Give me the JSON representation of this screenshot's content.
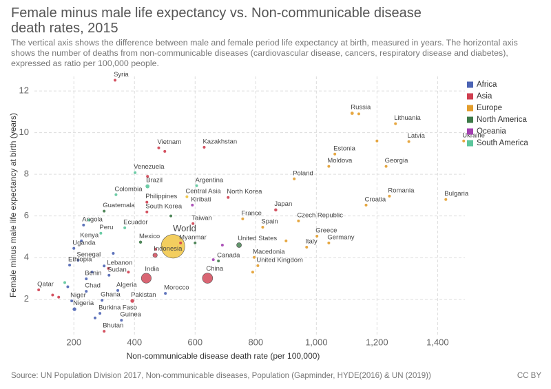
{
  "chart_data": {
    "type": "scatter",
    "title": "Female minus male life expectancy vs. Non-communicable disease death rates, 2015",
    "subtitle": "The vertical axis shows the difference between male and female period life expectancy at birth, measured in years. The horizontal axis shows the number of deaths from non-communicable diseases (cardiovascular disease, cancers, respiratory disease and diabetes), expressed as ratio per 100,000 people.",
    "x_label": "Non-communicable disease death rate (per 100,000)",
    "y_label": "Female minus male life expectancy at birth (years)",
    "source": "Source: UN Population Division 2017, Non-communicable diseases, Population (Gapminder, HYDE(2016) & UN (2019))",
    "license": "CC BY",
    "xlim": [
      70,
      1490
    ],
    "ylim": [
      0.3,
      12.7
    ],
    "xticks": [
      200,
      400,
      600,
      800,
      {
        "value": 1000,
        "label": "1,000"
      },
      {
        "value": 1200,
        "label": "1,200"
      },
      {
        "value": 1400,
        "label": "1,400"
      }
    ],
    "yticks": [
      2,
      4,
      6,
      8,
      10,
      12
    ],
    "grid": true,
    "legend": "right",
    "series": [
      {
        "name": "Africa",
        "color": "#4c64b4",
        "labels": [
          "Angola",
          "Kenya",
          "Uganda",
          "Ethiopia",
          "Sudan",
          "Senegal",
          "Benin",
          "Chad",
          "Algeria",
          "Morocco",
          "Ghana",
          "Niger",
          "Nigeria",
          "Burkina Faso",
          "Guinea",
          null,
          null,
          null,
          null,
          null
        ],
        "x": [
          232,
          225,
          200,
          186,
          316,
          214,
          241,
          241,
          345,
          502,
          293,
          193,
          202,
          286,
          357,
          260,
          330,
          180,
          270,
          300
        ],
        "values": [
          5.56,
          4.8,
          4.44,
          3.64,
          3.15,
          3.87,
          2.98,
          2.38,
          2.42,
          2.28,
          1.95,
          1.92,
          1.52,
          1.32,
          0.99,
          3.3,
          4.2,
          2.6,
          1.1,
          3.6
        ],
        "size": [
          28,
          47,
          40,
          100,
          39,
          15,
          11,
          14,
          40,
          34,
          27,
          20,
          181,
          18,
          12,
          10,
          8,
          12,
          6,
          9
        ]
      },
      {
        "name": "Asia",
        "color": "#cf3f50",
        "labels": [
          "Syria",
          "Vietnam",
          "Kazakhstan",
          "Philippines",
          "South Korea",
          "Taiwan",
          "North Korea",
          "Japan",
          "Myanmar",
          "Indonesia",
          "Lebanon",
          "India",
          "China",
          "Qatar",
          "Pakistan",
          "Bhutan",
          null,
          null,
          null,
          null,
          null,
          null
        ],
        "x": [
          336,
          480,
          630,
          441,
          441,
          593,
          709,
          866,
          552,
          468,
          314,
          439,
          641,
          84,
          393,
          300,
          150,
          130,
          443,
          500,
          470,
          380
        ],
        "values": [
          12.52,
          9.27,
          9.3,
          6.66,
          6.19,
          5.63,
          6.89,
          6.29,
          4.7,
          4.11,
          3.48,
          3.01,
          3.01,
          2.45,
          1.92,
          0.46,
          2.1,
          2.2,
          7.9,
          9.1,
          4.4,
          3.3
        ],
        "size": [
          19,
          93,
          18,
          101,
          51,
          23,
          25,
          127,
          53,
          258,
          6,
          1310,
          1400,
          2.5,
          189,
          0.8,
          3,
          3,
          8,
          5,
          6,
          7
        ]
      },
      {
        "name": "Europe",
        "color": "#e39d2c",
        "labels": [
          "Russia",
          "Lithuania",
          "Latvia",
          "Ukraine",
          "Estonia",
          "Moldova",
          "Georgia",
          "Poland",
          "Romania",
          "Bulgaria",
          "Croatia",
          "Czech Republic",
          "France",
          "Spain",
          "Greece",
          "Germany",
          "Italy",
          "Macedonia",
          "United Kingdom",
          null,
          null,
          null,
          null
        ],
        "x": [
          1118,
          1261,
          1305,
          1486,
          1061,
          1041,
          1230,
          927,
          1241,
          1427,
          1164,
          941,
          757,
          823,
          1002,
          1041,
          968,
          795,
          807,
          1200,
          1140,
          900,
          790
        ],
        "values": [
          10.93,
          10.43,
          9.57,
          9.6,
          8.97,
          8.38,
          8.38,
          7.78,
          6.95,
          6.79,
          6.52,
          5.76,
          5.86,
          5.46,
          5.03,
          4.7,
          4.5,
          4.01,
          3.61,
          9.6,
          10.9,
          4.8,
          3.3
        ],
        "size": [
          144,
          3,
          2,
          45,
          1.3,
          4,
          4,
          38,
          20,
          7,
          4,
          11,
          66,
          46,
          11,
          82,
          60,
          2,
          65,
          1,
          1,
          2,
          2
        ]
      },
      {
        "name": "North America",
        "color": "#3d7a48",
        "labels": [
          "Mexico",
          "Guatemala",
          "United States",
          "Canada",
          null,
          null
        ],
        "x": [
          420,
          300,
          745,
          677,
          520,
          600
        ],
        "values": [
          4.74,
          6.23,
          4.6,
          3.84,
          6.0,
          4.7
        ],
        "size": [
          125,
          16,
          320,
          36,
          3,
          4
        ]
      },
      {
        "name": "Oceania",
        "color": "#a33fb0",
        "labels": [
          "Kiribati",
          null,
          null
        ],
        "x": [
          591,
          690,
          660
        ],
        "values": [
          6.52,
          4.6,
          3.9
        ],
        "size": [
          0.1,
          3,
          3
        ]
      },
      {
        "name": "South America",
        "color": "#5cc69c",
        "labels": [
          "Venezuela",
          "Argentina",
          "Colombia",
          "Brazil",
          "Peru",
          "Ecuador",
          null,
          null
        ],
        "x": [
          402,
          605,
          339,
          443,
          289,
          368,
          250,
          170
        ],
        "values": [
          8.08,
          7.45,
          7.02,
          7.42,
          5.17,
          5.43,
          5.8,
          2.8
        ],
        "size": [
          31,
          43,
          48,
          206,
          31,
          16,
          7,
          4
        ]
      },
      {
        "name": null,
        "color": "#f0c237",
        "labels": [
          "World",
          "Central Asia"
        ],
        "x": [
          527,
          573
        ],
        "values": [
          4.54,
          6.92
        ],
        "size": [
          7380,
          5
        ]
      }
    ]
  }
}
